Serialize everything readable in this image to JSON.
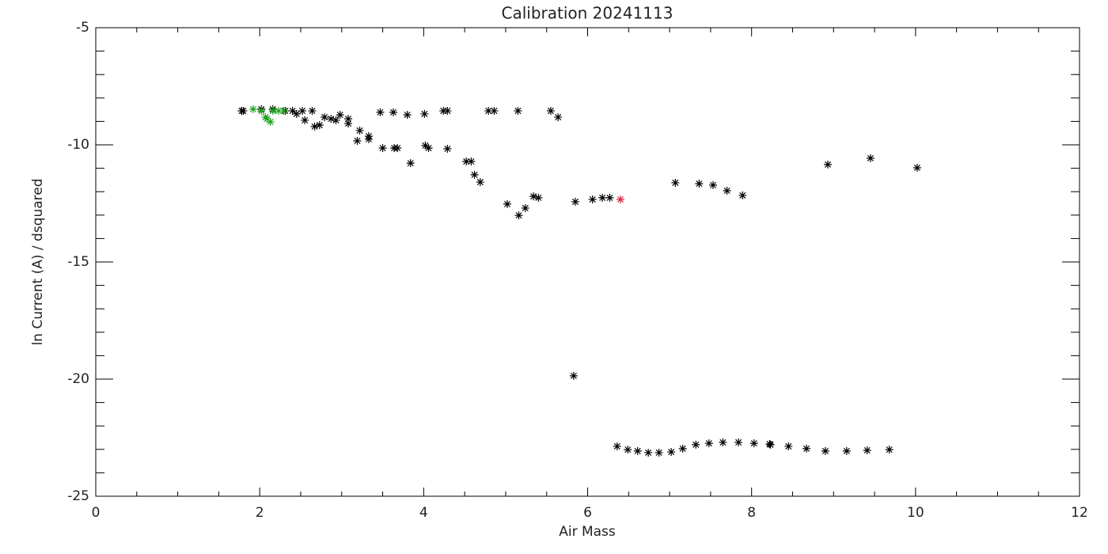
{
  "chart_data": {
    "type": "scatter",
    "title": "Calibration 20241113",
    "xlabel": "Air Mass",
    "ylabel": "ln Current (A) / dsquared",
    "xlim": [
      0,
      12
    ],
    "xticks": [
      0,
      2,
      4,
      6,
      8,
      10,
      12
    ],
    "xminor": 4,
    "ylim": [
      -25,
      -5
    ],
    "yticks": [
      -25,
      -20,
      -15,
      -10,
      -5
    ],
    "yminor": 5,
    "series": [
      {
        "color": "#000000",
        "x": [
          1.78,
          1.8,
          2.02,
          2.16,
          2.31,
          2.4,
          2.45,
          2.52,
          2.55,
          2.64,
          2.67,
          2.73,
          2.79,
          2.87,
          2.93,
          2.98,
          3.08,
          3.08,
          3.19,
          3.22,
          3.33,
          3.33,
          3.47,
          3.5,
          3.63,
          3.64,
          3.68,
          3.8,
          3.84,
          4.01,
          4.02,
          4.06,
          4.24,
          4.29,
          4.29,
          4.52,
          4.58,
          4.62,
          4.69,
          4.79,
          4.86,
          5.02,
          5.15,
          5.16,
          5.24,
          5.34,
          5.4,
          5.55,
          5.64,
          5.83,
          5.85,
          6.06,
          6.18,
          6.27,
          7.07,
          7.36,
          7.53,
          7.7,
          7.89,
          8.93,
          9.45,
          10.02,
          6.36,
          6.49,
          6.61,
          6.74,
          6.87,
          7.02,
          7.16,
          7.32,
          7.48,
          7.65,
          7.84,
          8.03,
          8.22,
          8.23,
          8.45,
          8.67,
          8.9,
          9.16,
          9.41,
          9.68
        ],
        "values": [
          -8.55,
          -8.55,
          -8.48,
          -8.48,
          -8.55,
          -8.55,
          -8.68,
          -8.55,
          -8.95,
          -8.55,
          -9.22,
          -9.16,
          -8.82,
          -8.89,
          -8.95,
          -8.72,
          -8.89,
          -9.09,
          -9.83,
          -9.39,
          -9.76,
          -9.63,
          -8.61,
          -10.14,
          -8.61,
          -10.14,
          -10.14,
          -8.72,
          -10.78,
          -8.68,
          -10.03,
          -10.14,
          -8.55,
          -8.55,
          -10.17,
          -10.71,
          -10.71,
          -11.28,
          -11.59,
          -8.55,
          -8.55,
          -12.53,
          -8.55,
          -13.01,
          -12.7,
          -12.2,
          -12.26,
          -8.55,
          -8.82,
          -19.86,
          -12.43,
          -12.33,
          -12.26,
          -12.26,
          -11.62,
          -11.66,
          -11.72,
          -11.96,
          -12.16,
          -10.84,
          -10.57,
          -10.98,
          -22.87,
          -23.01,
          -23.07,
          -23.14,
          -23.14,
          -23.11,
          -22.97,
          -22.8,
          -22.74,
          -22.7,
          -22.7,
          -22.74,
          -22.77,
          -22.8,
          -22.87,
          -22.97,
          -23.07,
          -23.07,
          -23.04,
          -23.01
        ]
      },
      {
        "color": "#1fa31f",
        "x": [
          1.92,
          2.02,
          2.07,
          2.09,
          2.13,
          2.16,
          2.23,
          2.29
        ],
        "values": [
          -8.48,
          -8.55,
          -8.82,
          -8.89,
          -9.02,
          -8.55,
          -8.55,
          -8.55
        ]
      },
      {
        "color": "#e0203c",
        "x": [
          6.4
        ],
        "values": [
          -12.33
        ]
      }
    ]
  }
}
